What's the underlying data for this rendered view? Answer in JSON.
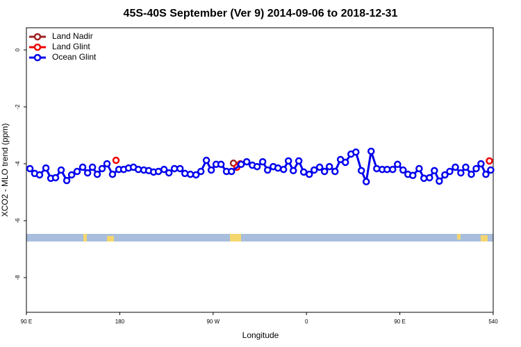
{
  "chart_data": {
    "type": "line",
    "title": "45S-40S September (Ver 9)   2014-09-06 to 2018-12-31",
    "xlabel": "Longitude",
    "ylabel": "XCO2 - MLO trend (ppm)",
    "xlim": [
      90,
      540
    ],
    "ylim": [
      -9.22,
      0.78
    ],
    "xticks": [
      {
        "value": 90,
        "label": "90 E"
      },
      180,
      {
        "value": 270,
        "label": "90 W"
      },
      {
        "value": 360,
        "label": "0"
      },
      {
        "value": 450,
        "label": "90 E"
      },
      540
    ],
    "yticks": [
      0,
      -2,
      -4,
      -6,
      -8
    ],
    "legend": "top-left",
    "series": [
      {
        "name": "Land Nadir",
        "color": "#a02020",
        "x": [
          289.6
        ],
        "values": [
          -3.98
        ]
      },
      {
        "name": "Land Glint",
        "color": "#ee0000",
        "x": [
          176.4,
          292.9,
          296.3,
          536.3
        ],
        "values": [
          -3.88,
          -4.12,
          -4.0,
          -3.9
        ]
      },
      {
        "name": "Ocean Glint",
        "color": "#0000ee",
        "x": [
          93.4,
          98.0,
          102.7,
          108.8,
          113.5,
          118.1,
          123.5,
          128.9,
          133.6,
          138.9,
          144.3,
          149.0,
          153.7,
          158.3,
          163.0,
          167.7,
          173.0,
          179.1,
          183.8,
          188.5,
          193.2,
          197.9,
          203.2,
          207.9,
          212.6,
          217.3,
          222.7,
          227.4,
          232.7,
          238.1,
          242.8,
          248.1,
          253.5,
          258.2,
          263.5,
          268.2,
          272.9,
          277.6,
          282.9,
          287.7,
          297.0,
          302.4,
          307.8,
          312.4,
          317.8,
          322.5,
          327.9,
          332.5,
          337.9,
          342.6,
          347.3,
          352.6,
          357.3,
          362.7,
          367.4,
          372.7,
          377.4,
          382.1,
          387.5,
          392.8,
          397.5,
          402.9,
          407.6,
          412.9,
          417.6,
          422.3,
          427.7,
          433.0,
          437.7,
          443.1,
          447.8,
          453.1,
          457.8,
          462.5,
          468.6,
          473.2,
          478.6,
          483.3,
          488.0,
          493.4,
          498.1,
          503.5,
          508.8,
          513.5,
          518.9,
          523.6,
          528.2,
          532.9,
          537.6
        ],
        "values": [
          -4.17,
          -4.34,
          -4.39,
          -4.15,
          -4.51,
          -4.49,
          -4.22,
          -4.59,
          -4.39,
          -4.27,
          -4.12,
          -4.32,
          -4.12,
          -4.37,
          -4.17,
          -4.0,
          -4.37,
          -4.2,
          -4.2,
          -4.15,
          -4.12,
          -4.2,
          -4.22,
          -4.24,
          -4.29,
          -4.27,
          -4.2,
          -4.32,
          -4.17,
          -4.17,
          -4.34,
          -4.37,
          -4.39,
          -4.27,
          -3.88,
          -4.22,
          -4.02,
          -4.02,
          -4.27,
          -4.27,
          -4.02,
          -3.93,
          -4.05,
          -4.1,
          -3.93,
          -4.22,
          -4.1,
          -4.15,
          -4.2,
          -3.9,
          -4.24,
          -3.9,
          -4.29,
          -4.37,
          -4.22,
          -4.12,
          -4.27,
          -4.1,
          -4.27,
          -3.85,
          -3.95,
          -3.66,
          -3.59,
          -4.24,
          -4.63,
          -3.56,
          -4.17,
          -4.2,
          -4.2,
          -4.2,
          -4.02,
          -4.22,
          -4.37,
          -4.41,
          -4.17,
          -4.51,
          -4.49,
          -4.24,
          -4.61,
          -4.39,
          -4.27,
          -4.12,
          -4.32,
          -4.12,
          -4.37,
          -4.17,
          -4.0,
          -4.37,
          -4.22
        ]
      }
    ]
  }
}
